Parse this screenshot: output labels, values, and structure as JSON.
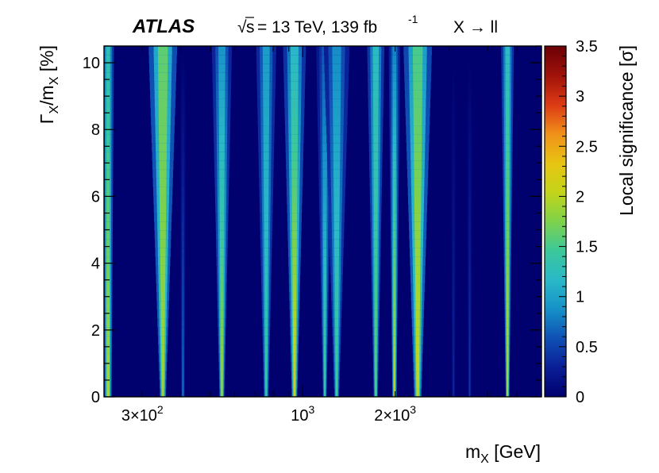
{
  "chart_data": {
    "type": "heatmap",
    "header": {
      "experiment": "ATLAS",
      "sqrt_label": "s",
      "energy_label": "= 13 TeV, 139 fb",
      "lumi_exp": "-1",
      "process": "X → ll"
    },
    "xlabel": {
      "main": "m",
      "sub": "X",
      "unit": " [GeV]"
    },
    "ylabel": {
      "main": "Γ",
      "sub1": "X",
      "mid": "/m",
      "sub2": "X",
      "unit": " [%]"
    },
    "zlabel": "Local significance [σ]",
    "x_scale": "log",
    "xlim": [
      225,
      6000
    ],
    "ylim": [
      0,
      10.5
    ],
    "zlim": [
      0,
      3.5
    ],
    "x_ticks": [
      {
        "value": 300,
        "base": "3×10",
        "exp": "2"
      },
      {
        "value": 1000,
        "base": "10",
        "exp": "3"
      },
      {
        "value": 2000,
        "base": "2×10",
        "exp": "3"
      }
    ],
    "y_ticks": [
      "0",
      "2",
      "4",
      "6",
      "8",
      "10"
    ],
    "z_ticks": [
      "0",
      "0.5",
      "1",
      "1.5",
      "2",
      "2.5",
      "3",
      "3.5"
    ],
    "bands": [
      {
        "mass": 232,
        "sig_low": 2.0,
        "sig_high": 1.25,
        "width_low": 0.012,
        "width_high": 0.02
      },
      {
        "mass": 350,
        "sig_low": 1.9,
        "sig_high": 1.6,
        "width_low": 0.01,
        "width_high": 0.05
      },
      {
        "mass": 407,
        "sig_low": 0.75,
        "sig_high": 0.0,
        "width_low": 0.006,
        "width_high": 0.01
      },
      {
        "mass": 545,
        "sig_low": 1.9,
        "sig_high": 0.9,
        "width_low": 0.008,
        "width_high": 0.035
      },
      {
        "mass": 760,
        "sig_low": 1.4,
        "sig_high": 0.95,
        "width_low": 0.008,
        "width_high": 0.035
      },
      {
        "mass": 940,
        "sig_low": 2.2,
        "sig_high": 1.15,
        "width_low": 0.009,
        "width_high": 0.04
      },
      {
        "mass": 1180,
        "sig_low": 1.5,
        "sig_high": 0.6,
        "width_low": 0.006,
        "width_high": 0.03
      },
      {
        "mass": 1290,
        "sig_low": 1.5,
        "sig_high": 0.85,
        "width_low": 0.008,
        "width_high": 0.045
      },
      {
        "mass": 1730,
        "sig_low": 1.6,
        "sig_high": 1.2,
        "width_low": 0.007,
        "width_high": 0.03
      },
      {
        "mass": 1990,
        "sig_low": 2.1,
        "sig_high": 0.8,
        "width_low": 0.007,
        "width_high": 0.02
      },
      {
        "mass": 2370,
        "sig_low": 2.1,
        "sig_high": 1.5,
        "width_low": 0.012,
        "width_high": 0.05
      },
      {
        "mass": 3100,
        "sig_low": 0.35,
        "sig_high": 0.0,
        "width_low": 0.005,
        "width_high": 0.01
      },
      {
        "mass": 3500,
        "sig_low": 0.45,
        "sig_high": 0.0,
        "width_low": 0.005,
        "width_high": 0.01
      },
      {
        "mass": 4650,
        "sig_low": 2.1,
        "sig_high": 1.2,
        "width_low": 0.006,
        "width_high": 0.022
      }
    ],
    "colormap": [
      "#00006e",
      "#0a1e96",
      "#0f50b4",
      "#1691c8",
      "#2ab8c8",
      "#3cc89a",
      "#7ed24a",
      "#c4d41a",
      "#e8c412",
      "#f0901a",
      "#dc3a14",
      "#a0120a",
      "#6a0006"
    ],
    "grid": false,
    "legend": "colorbar-right"
  }
}
